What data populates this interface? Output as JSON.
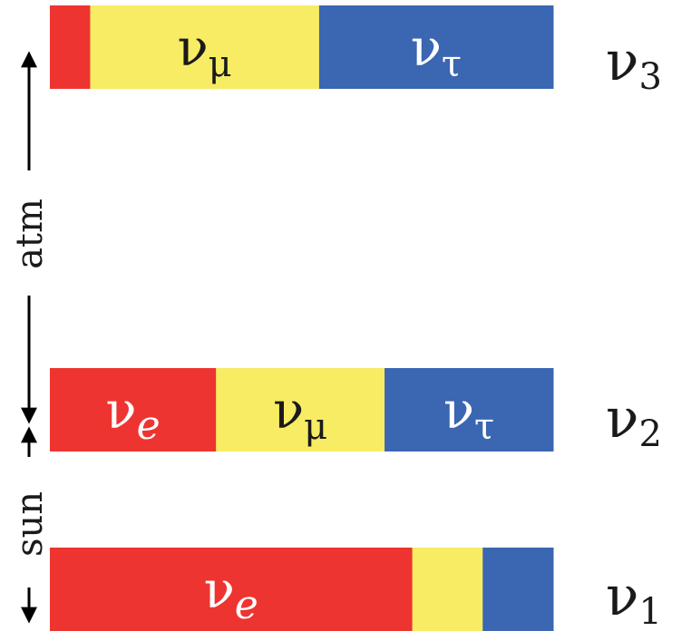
{
  "colors": {
    "electron": "#ee3430",
    "muon": "#f7ec63",
    "tau": "#3a66b2",
    "text_on_light": "#1a1a1a",
    "text_on_dark": "#ffffff",
    "arrow": "#000000"
  },
  "states": [
    {
      "id": "nu3",
      "label": {
        "base": "ν",
        "sub": "3"
      },
      "fractions": {
        "e": 0.08,
        "mu": 0.455,
        "tau": 0.465
      },
      "segment_labels": [
        {
          "flavor": "mu",
          "base": "ν",
          "sub": "μ"
        },
        {
          "flavor": "tau",
          "base": "ν",
          "sub": "τ"
        }
      ]
    },
    {
      "id": "nu2",
      "label": {
        "base": "ν",
        "sub": "2"
      },
      "fractions": {
        "e": 0.33,
        "mu": 0.335,
        "tau": 0.335
      },
      "segment_labels": [
        {
          "flavor": "e",
          "base": "ν",
          "sub": "e"
        },
        {
          "flavor": "mu",
          "base": "ν",
          "sub": "μ"
        },
        {
          "flavor": "tau",
          "base": "ν",
          "sub": "τ"
        }
      ]
    },
    {
      "id": "nu1",
      "label": {
        "base": "ν",
        "sub": "1"
      },
      "fractions": {
        "e": 0.72,
        "mu": 0.14,
        "tau": 0.14
      },
      "segment_labels": [
        {
          "flavor": "e",
          "base": "ν",
          "sub": "e"
        }
      ]
    }
  ],
  "splittings": [
    {
      "id": "atm",
      "label": "atm"
    },
    {
      "id": "sun",
      "label": "sun"
    }
  ]
}
